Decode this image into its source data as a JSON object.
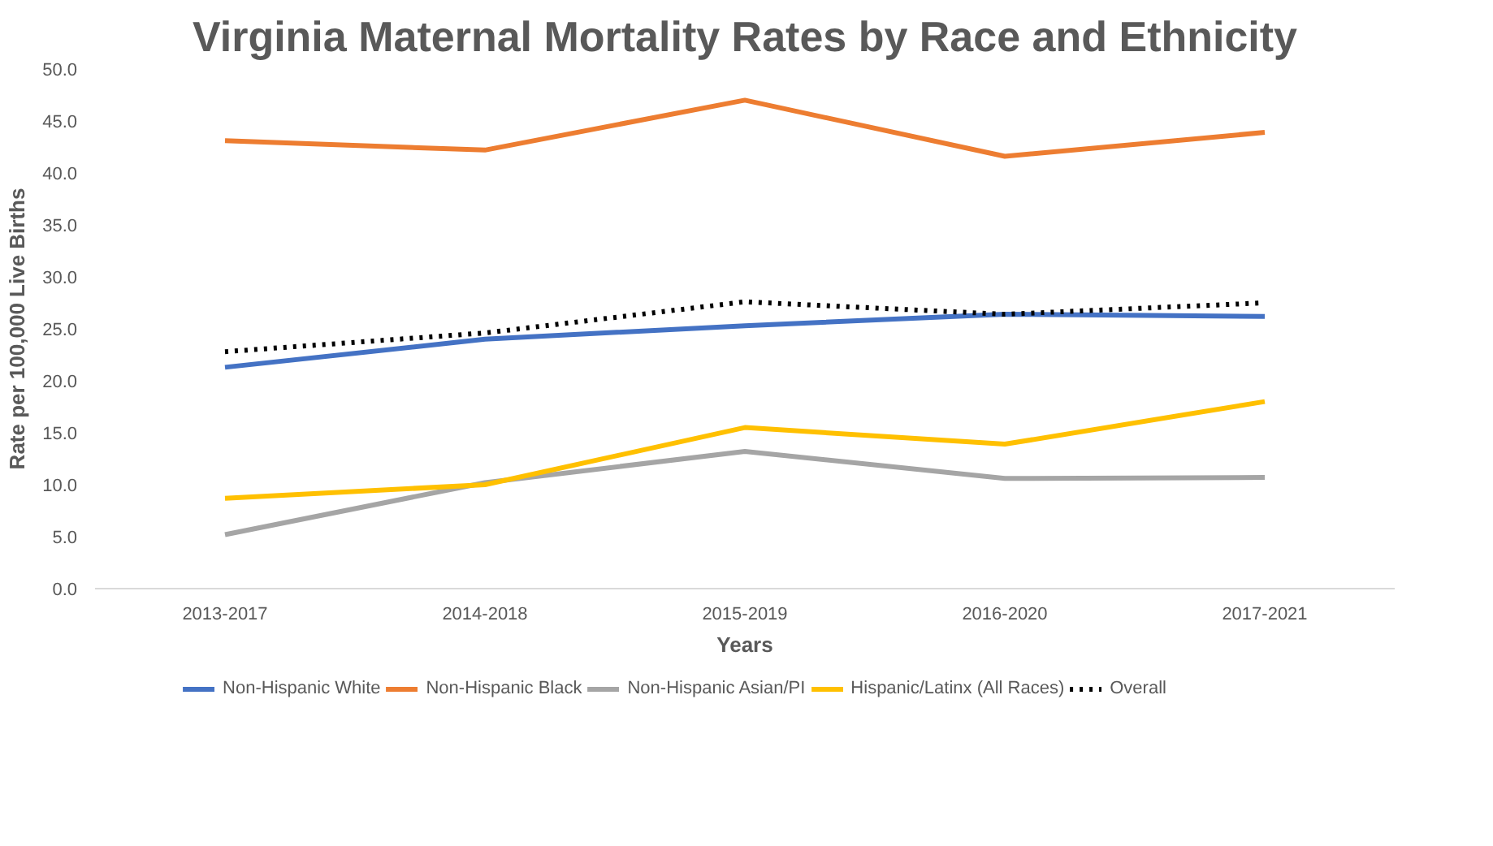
{
  "chart_data": {
    "type": "line",
    "title": "Virginia Maternal Mortality Rates by Race and Ethnicity",
    "xlabel": "Years",
    "ylabel": "Rate per 100,000 Live Births",
    "categories": [
      "2013-2017",
      "2014-2018",
      "2015-2019",
      "2016-2020",
      "2017-2021"
    ],
    "ylim": [
      0,
      50
    ],
    "yticks": [
      {
        "value": 0,
        "label": "0.0"
      },
      {
        "value": 5,
        "label": "5.0"
      },
      {
        "value": 10,
        "label": "10.0"
      },
      {
        "value": 15,
        "label": "15.0"
      },
      {
        "value": 20,
        "label": "20.0"
      },
      {
        "value": 25,
        "label": "25.0"
      },
      {
        "value": 30,
        "label": "30.0"
      },
      {
        "value": 35,
        "label": "35.0"
      },
      {
        "value": 40,
        "label": "40.0"
      },
      {
        "value": 45,
        "label": "45.0"
      },
      {
        "value": 50,
        "label": "50.0"
      }
    ],
    "legend": "bottom",
    "marker": "none",
    "series": [
      {
        "name": "Non-Hispanic White",
        "color": "#4472c4",
        "values": [
          21.3,
          24.0,
          25.3,
          26.4,
          26.2
        ]
      },
      {
        "name": "Non-Hispanic Black",
        "color": "#ed7d31",
        "values": [
          43.1,
          42.2,
          47.0,
          41.6,
          43.9
        ]
      },
      {
        "name": "Non-Hispanic Asian/PI",
        "color": "#a5a5a5",
        "values": [
          5.2,
          10.2,
          13.2,
          10.6,
          10.7
        ]
      },
      {
        "name": "Hispanic/Latinx (All Races)",
        "color": "#ffc000",
        "values": [
          8.7,
          10.0,
          15.5,
          13.9,
          18.0
        ]
      },
      {
        "name": "Overall",
        "color": "#000000",
        "line_style": "dotted",
        "values": [
          22.8,
          24.6,
          27.6,
          26.4,
          27.5
        ]
      }
    ]
  }
}
